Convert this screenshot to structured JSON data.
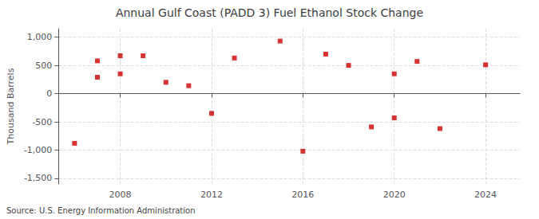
{
  "chart_data": {
    "type": "scatter",
    "title": "Annual Gulf Coast (PADD 3) Fuel Ethanol Stock Change",
    "ylabel": "Thousand Barrels",
    "source": "Source: U.S. Energy Information Administration",
    "x": [
      2006,
      2007,
      2007,
      2008,
      2008,
      2009,
      2010,
      2011,
      2012,
      2013,
      2015,
      2016,
      2017,
      2018,
      2019,
      2020,
      2020,
      2021,
      2022,
      2024
    ],
    "values": [
      -880,
      580,
      290,
      670,
      350,
      670,
      200,
      140,
      -350,
      630,
      930,
      -1020,
      700,
      500,
      -590,
      -430,
      350,
      570,
      -620,
      510
    ],
    "color": "#cc0000",
    "marker": "square",
    "xlim": [
      2005.3,
      2025.5
    ],
    "xticks": [
      2008,
      2012,
      2016,
      2020,
      2024
    ],
    "ylim": [
      -1600,
      1150
    ],
    "yticks": [
      {
        "value": -1500,
        "label": "-1,500"
      },
      {
        "value": -1000,
        "label": "-1,000"
      },
      -500,
      0,
      500,
      {
        "value": 1000,
        "label": "1,000"
      }
    ],
    "grid": true
  }
}
